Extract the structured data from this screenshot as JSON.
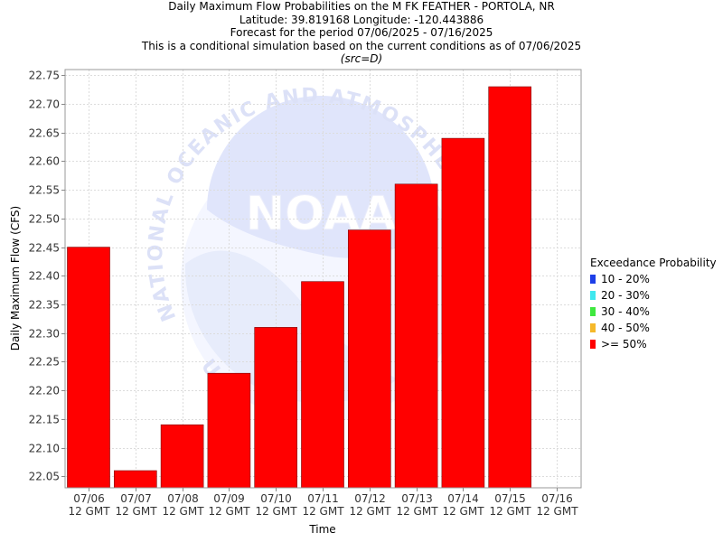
{
  "titles": {
    "line1": "Daily Maximum Flow Probabilities on the M FK FEATHER - PORTOLA, NR",
    "line2": "Latitude: 39.819168 Longitude: -120.443886",
    "line3": "Forecast for the period 07/06/2025 - 07/16/2025",
    "line4": "This is a conditional simulation based on the current conditions as of 07/06/2025",
    "line5": "(src=D)"
  },
  "watermark": {
    "logo_text": "NOAA",
    "ring_top": "NATIONAL OCEANIC AND ATMOSPHERIC AD",
    "ring_bottom": "U.S.D"
  },
  "legend": {
    "title": "Exceedance Probability",
    "items": [
      {
        "label": "10 - 20%",
        "color": "#1d3fe8"
      },
      {
        "label": "20 - 30%",
        "color": "#3fe8ef"
      },
      {
        "label": "30 - 40%",
        "color": "#3fe83f"
      },
      {
        "label": "40 - 50%",
        "color": "#f5b82a"
      },
      {
        "label": ">= 50%",
        "color": "#ff0000"
      }
    ]
  },
  "chart_data": {
    "type": "bar",
    "categories": [
      "07/06\n12 GMT",
      "07/07\n12 GMT",
      "07/08\n12 GMT",
      "07/09\n12 GMT",
      "07/10\n12 GMT",
      "07/11\n12 GMT",
      "07/12\n12 GMT",
      "07/13\n12 GMT",
      "07/14\n12 GMT",
      "07/15\n12 GMT",
      "07/16\n12 GMT"
    ],
    "series": [
      {
        "name": ">= 50%",
        "color": "#ff0000",
        "values": [
          22.45,
          22.06,
          22.14,
          22.23,
          22.31,
          22.39,
          22.48,
          22.56,
          22.64,
          22.73,
          null
        ]
      }
    ],
    "xlabel": "Time",
    "ylabel": "Daily Maximum Flow (CFS)",
    "ylim": [
      22.03,
      22.76
    ],
    "yticks": [
      22.05,
      22.1,
      22.15,
      22.2,
      22.25,
      22.3,
      22.35,
      22.4,
      22.45,
      22.5,
      22.55,
      22.6,
      22.65,
      22.7,
      22.75
    ],
    "grid": true,
    "legend_position": "right"
  }
}
